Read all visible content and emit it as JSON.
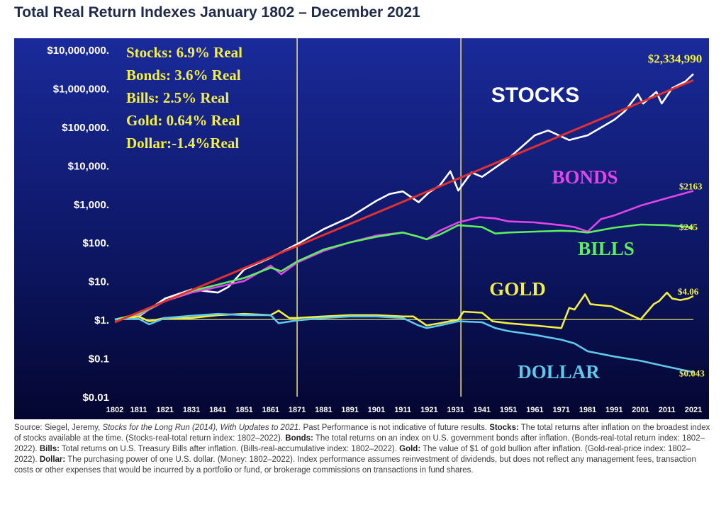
{
  "title": "Total Real Return Indexes January 1802 – December 2021",
  "source": {
    "lead": "Source: Siegel, Jeremy, ",
    "book": "Stocks for the Long Run (2014), With Updates to 2021.",
    "p1": " Past Performance is not indicative of future results. ",
    "stocks_label": "Stocks:",
    "stocks_text": " The total returns after inflation on the broadest index of stocks available at the time. (Stocks-real-total return index: 1802–2022). ",
    "bonds_label": "Bonds:",
    "bonds_text": " The total returns on an index on U.S. government bonds after inflation. (Bonds-real-total return index: 1802–2022). ",
    "bills_label": "Bills:",
    "bills_text": " Total returns on U.S. Treasury Bills after inflation. (Bills-real-accumulative index: 1802–2022). ",
    "gold_label": "Gold:",
    "gold_text": " The value of $1 of gold bullion after inflation. (Gold-real-price index: 1802–2022). ",
    "dollar_label": "Dollar:",
    "dollar_text": " The purchasing power of one U.S. dollar. (Money: 1802–2022). Index performance assumes reinvestment of dividends, but does not reflect any management fees, transaction costs or other expenses that would be incurred by a portfolio or fund, or brokerage commissions on transactions in fund shares."
  },
  "chart_data": {
    "type": "line",
    "yscale": "log",
    "ylim": [
      0.01,
      10000000
    ],
    "xlim": [
      1802,
      2021
    ],
    "y_ticks": [
      {
        "value": 10000000,
        "label": "$10,000,000."
      },
      {
        "value": 1000000,
        "label": "$1,000,000."
      },
      {
        "value": 100000,
        "label": "$100,000."
      },
      {
        "value": 10000,
        "label": "$10,000."
      },
      {
        "value": 1000,
        "label": "$1,000."
      },
      {
        "value": 100,
        "label": "$100."
      },
      {
        "value": 10,
        "label": "$10."
      },
      {
        "value": 1,
        "label": "$1."
      },
      {
        "value": 0.1,
        "label": "$0.1"
      },
      {
        "value": 0.01,
        "label": "$0.01"
      }
    ],
    "x_ticks": [
      "1802",
      "1811",
      "1821",
      "1831",
      "1841",
      "1851",
      "1861",
      "1871",
      "1881",
      "1891",
      "1901",
      "1911",
      "1921",
      "1931",
      "1941",
      "1951",
      "1961",
      "1971",
      "1981",
      "1991",
      "2001",
      "2011",
      "2021"
    ],
    "vertical_lines": [
      1871,
      1933
    ],
    "reference_lines": [
      1
    ],
    "legend_lines": [
      "Stocks: 6.9% Real",
      "Bonds: 3.6% Real",
      "Bills:    2.5% Real",
      "Gold:   0.64% Real",
      "Dollar:-1.4%Real"
    ],
    "series": [
      {
        "name": "STOCKS",
        "color": "#ffffff",
        "end_label": "$2,334,990",
        "x": [
          1802,
          1811,
          1821,
          1831,
          1841,
          1845,
          1851,
          1861,
          1871,
          1881,
          1891,
          1901,
          1906,
          1911,
          1917,
          1921,
          1925,
          1929,
          1932,
          1937,
          1941,
          1951,
          1961,
          1966,
          1974,
          1981,
          1991,
          1995,
          2000,
          2002,
          2007,
          2009,
          2013,
          2018,
          2021
        ],
        "values": [
          1,
          1.2,
          3.5,
          6,
          5,
          7,
          20,
          40,
          90,
          220,
          450,
          1200,
          1800,
          2100,
          1100,
          2000,
          3000,
          7000,
          2200,
          6500,
          5000,
          15000,
          60000,
          80000,
          45000,
          60000,
          150000,
          250000,
          700000,
          400000,
          800000,
          400000,
          1000000,
          1500000,
          2334990
        ]
      },
      {
        "name": "BONDS",
        "color": "#e246e8",
        "end_label": "$2163",
        "x": [
          1802,
          1811,
          1821,
          1831,
          1841,
          1851,
          1861,
          1865,
          1871,
          1881,
          1891,
          1901,
          1911,
          1917,
          1920,
          1925,
          1932,
          1940,
          1946,
          1951,
          1961,
          1971,
          1976,
          1981,
          1986,
          1991,
          2001,
          2011,
          2021
        ],
        "values": [
          1,
          1.3,
          3,
          5,
          7,
          10,
          25,
          15,
          30,
          60,
          100,
          150,
          180,
          140,
          120,
          200,
          330,
          450,
          420,
          350,
          330,
          280,
          250,
          190,
          400,
          500,
          900,
          1400,
          2163
        ]
      },
      {
        "name": "BILLS",
        "color": "#5cf05c",
        "end_label": "$245",
        "x": [
          1802,
          1811,
          1821,
          1831,
          1841,
          1851,
          1861,
          1865,
          1871,
          1881,
          1891,
          1901,
          1911,
          1917,
          1920,
          1925,
          1932,
          1941,
          1946,
          1951,
          1961,
          1971,
          1976,
          1981,
          1991,
          2001,
          2011,
          2021
        ],
        "values": [
          1,
          1.4,
          3,
          5.5,
          8,
          12,
          22,
          18,
          32,
          65,
          100,
          140,
          180,
          140,
          120,
          160,
          280,
          250,
          170,
          180,
          190,
          200,
          195,
          180,
          240,
          290,
          280,
          245
        ]
      },
      {
        "name": "GOLD",
        "color": "#f4f042",
        "end_label": "$4.06",
        "x": [
          1802,
          1811,
          1815,
          1821,
          1831,
          1841,
          1851,
          1861,
          1864,
          1868,
          1871,
          1881,
          1891,
          1901,
          1911,
          1915,
          1920,
          1925,
          1932,
          1934,
          1941,
          1945,
          1951,
          1961,
          1971,
          1974,
          1976,
          1980,
          1982,
          1990,
          2001,
          2006,
          2008,
          2011,
          2013,
          2016,
          2019,
          2021
        ],
        "values": [
          1,
          1.2,
          0.9,
          1.1,
          1.1,
          1.3,
          1.4,
          1.3,
          1.7,
          1.1,
          1.1,
          1.2,
          1.3,
          1.3,
          1.2,
          1.2,
          0.7,
          0.8,
          1,
          1.6,
          1.5,
          0.9,
          0.8,
          0.7,
          0.6,
          2,
          1.8,
          4.5,
          2.5,
          2.2,
          1,
          2.5,
          3,
          5,
          3.5,
          3.2,
          3.5,
          4.06
        ]
      },
      {
        "name": "DOLLAR",
        "color": "#5ec9ea",
        "end_label": "$0.043",
        "x": [
          1802,
          1811,
          1815,
          1821,
          1831,
          1841,
          1851,
          1861,
          1864,
          1871,
          1881,
          1891,
          1901,
          1911,
          1917,
          1920,
          1925,
          1932,
          1941,
          1946,
          1951,
          1961,
          1971,
          1976,
          1981,
          1991,
          2001,
          2011,
          2021
        ],
        "values": [
          1,
          1.05,
          0.75,
          1.1,
          1.25,
          1.4,
          1.3,
          1.3,
          0.8,
          0.95,
          1.1,
          1.2,
          1.2,
          1.1,
          0.7,
          0.6,
          0.7,
          0.9,
          0.85,
          0.6,
          0.5,
          0.4,
          0.3,
          0.24,
          0.15,
          0.11,
          0.085,
          0.06,
          0.043
        ]
      },
      {
        "name": "",
        "color": "#e03030",
        "trend": true,
        "x": [
          1802,
          2021
        ],
        "values": [
          0.85,
          1600000
        ]
      }
    ],
    "series_labels": [
      "STOCKS",
      "BONDS",
      "BILLS",
      "GOLD",
      "DOLLAR"
    ]
  }
}
